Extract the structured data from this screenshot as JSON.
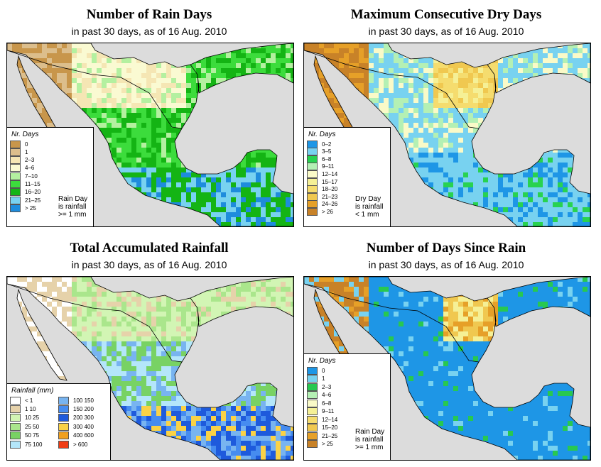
{
  "panels": [
    {
      "id": "rain_days",
      "title": "Number of Rain Days",
      "subtitle": "in past 30 days, as of  16 Aug. 2010",
      "legend": {
        "title": "Nr. Days",
        "note": [
          "Rain Day",
          "is rainfall",
          ">= 1 mm"
        ],
        "items": [
          {
            "label": "0",
            "color": "#c8964b"
          },
          {
            "label": "1",
            "color": "#dcbe8c"
          },
          {
            "label": "2–3",
            "color": "#f5e6b4"
          },
          {
            "label": "4–6",
            "color": "#fafad2"
          },
          {
            "label": "7–10",
            "color": "#b4f0a0"
          },
          {
            "label": "11–15",
            "color": "#3cdc3c"
          },
          {
            "label": "16–20",
            "color": "#14b414"
          },
          {
            "label": "21–25",
            "color": "#78d2f0"
          },
          {
            "label": "> 25",
            "color": "#1e8cdc"
          }
        ]
      }
    },
    {
      "id": "dry_days",
      "title": "Maximum Consecutive Dry Days",
      "subtitle": "in past 30 days, as of  16 Aug. 2010",
      "legend": {
        "title": "Nr. Days",
        "note": [
          "Dry Day",
          "is rainfall",
          "< 1 mm"
        ],
        "items": [
          {
            "label": "0–2",
            "color": "#1e96e6"
          },
          {
            "label": "3–5",
            "color": "#78d2f0"
          },
          {
            "label": "6–8",
            "color": "#28d250"
          },
          {
            "label": "9–11",
            "color": "#b4f0b4"
          },
          {
            "label": "12–14",
            "color": "#fafac8"
          },
          {
            "label": "15–17",
            "color": "#f5f096"
          },
          {
            "label": "18–20",
            "color": "#f5dc6e"
          },
          {
            "label": "21–23",
            "color": "#f0c850"
          },
          {
            "label": "24–26",
            "color": "#e6a028"
          },
          {
            "label": "> 26",
            "color": "#c88228"
          }
        ]
      }
    },
    {
      "id": "rainfall",
      "title": "Total Accumulated Rainfall",
      "subtitle": "in past 30 days, as of  16 Aug. 2010",
      "legend": {
        "title": "Rainfall (mm)",
        "items": [
          {
            "label": "< 1",
            "color": "#ffffff"
          },
          {
            "label": "1   10",
            "color": "#e6d2aa"
          },
          {
            "label": "10   25",
            "color": "#d2f5b4"
          },
          {
            "label": "25   50",
            "color": "#aae68c"
          },
          {
            "label": "50   75",
            "color": "#78d264"
          },
          {
            "label": "75  100",
            "color": "#b4e6fa"
          },
          {
            "label": "100  150",
            "color": "#78b4f0"
          },
          {
            "label": "150  200",
            "color": "#468cf0"
          },
          {
            "label": "200  300",
            "color": "#1e5adc"
          },
          {
            "label": "300  400",
            "color": "#fad246"
          },
          {
            "label": "400  600",
            "color": "#f0a01e"
          },
          {
            "label": "> 600",
            "color": "#f03c14"
          }
        ]
      }
    },
    {
      "id": "since_rain",
      "title": "Number of Days Since Rain",
      "subtitle": "in past 30 days, as of  16 Aug. 2010",
      "legend": {
        "title": "Nr. Days",
        "note": [
          "Rain Day",
          "is rainfall",
          ">= 1 mm"
        ],
        "items": [
          {
            "label": "0",
            "color": "#1e96e6"
          },
          {
            "label": "1",
            "color": "#78d2f0"
          },
          {
            "label": "2–3",
            "color": "#28c850"
          },
          {
            "label": "4–6",
            "color": "#b4f0b4"
          },
          {
            "label": "6–8",
            "color": "#fafac8"
          },
          {
            "label": "9–11",
            "color": "#f5f096"
          },
          {
            "label": "12–14",
            "color": "#f5dc6e"
          },
          {
            "label": "15–20",
            "color": "#f0c850"
          },
          {
            "label": "21–25",
            "color": "#e6a028"
          },
          {
            "label": "> 25",
            "color": "#c88228"
          }
        ]
      }
    }
  ]
}
